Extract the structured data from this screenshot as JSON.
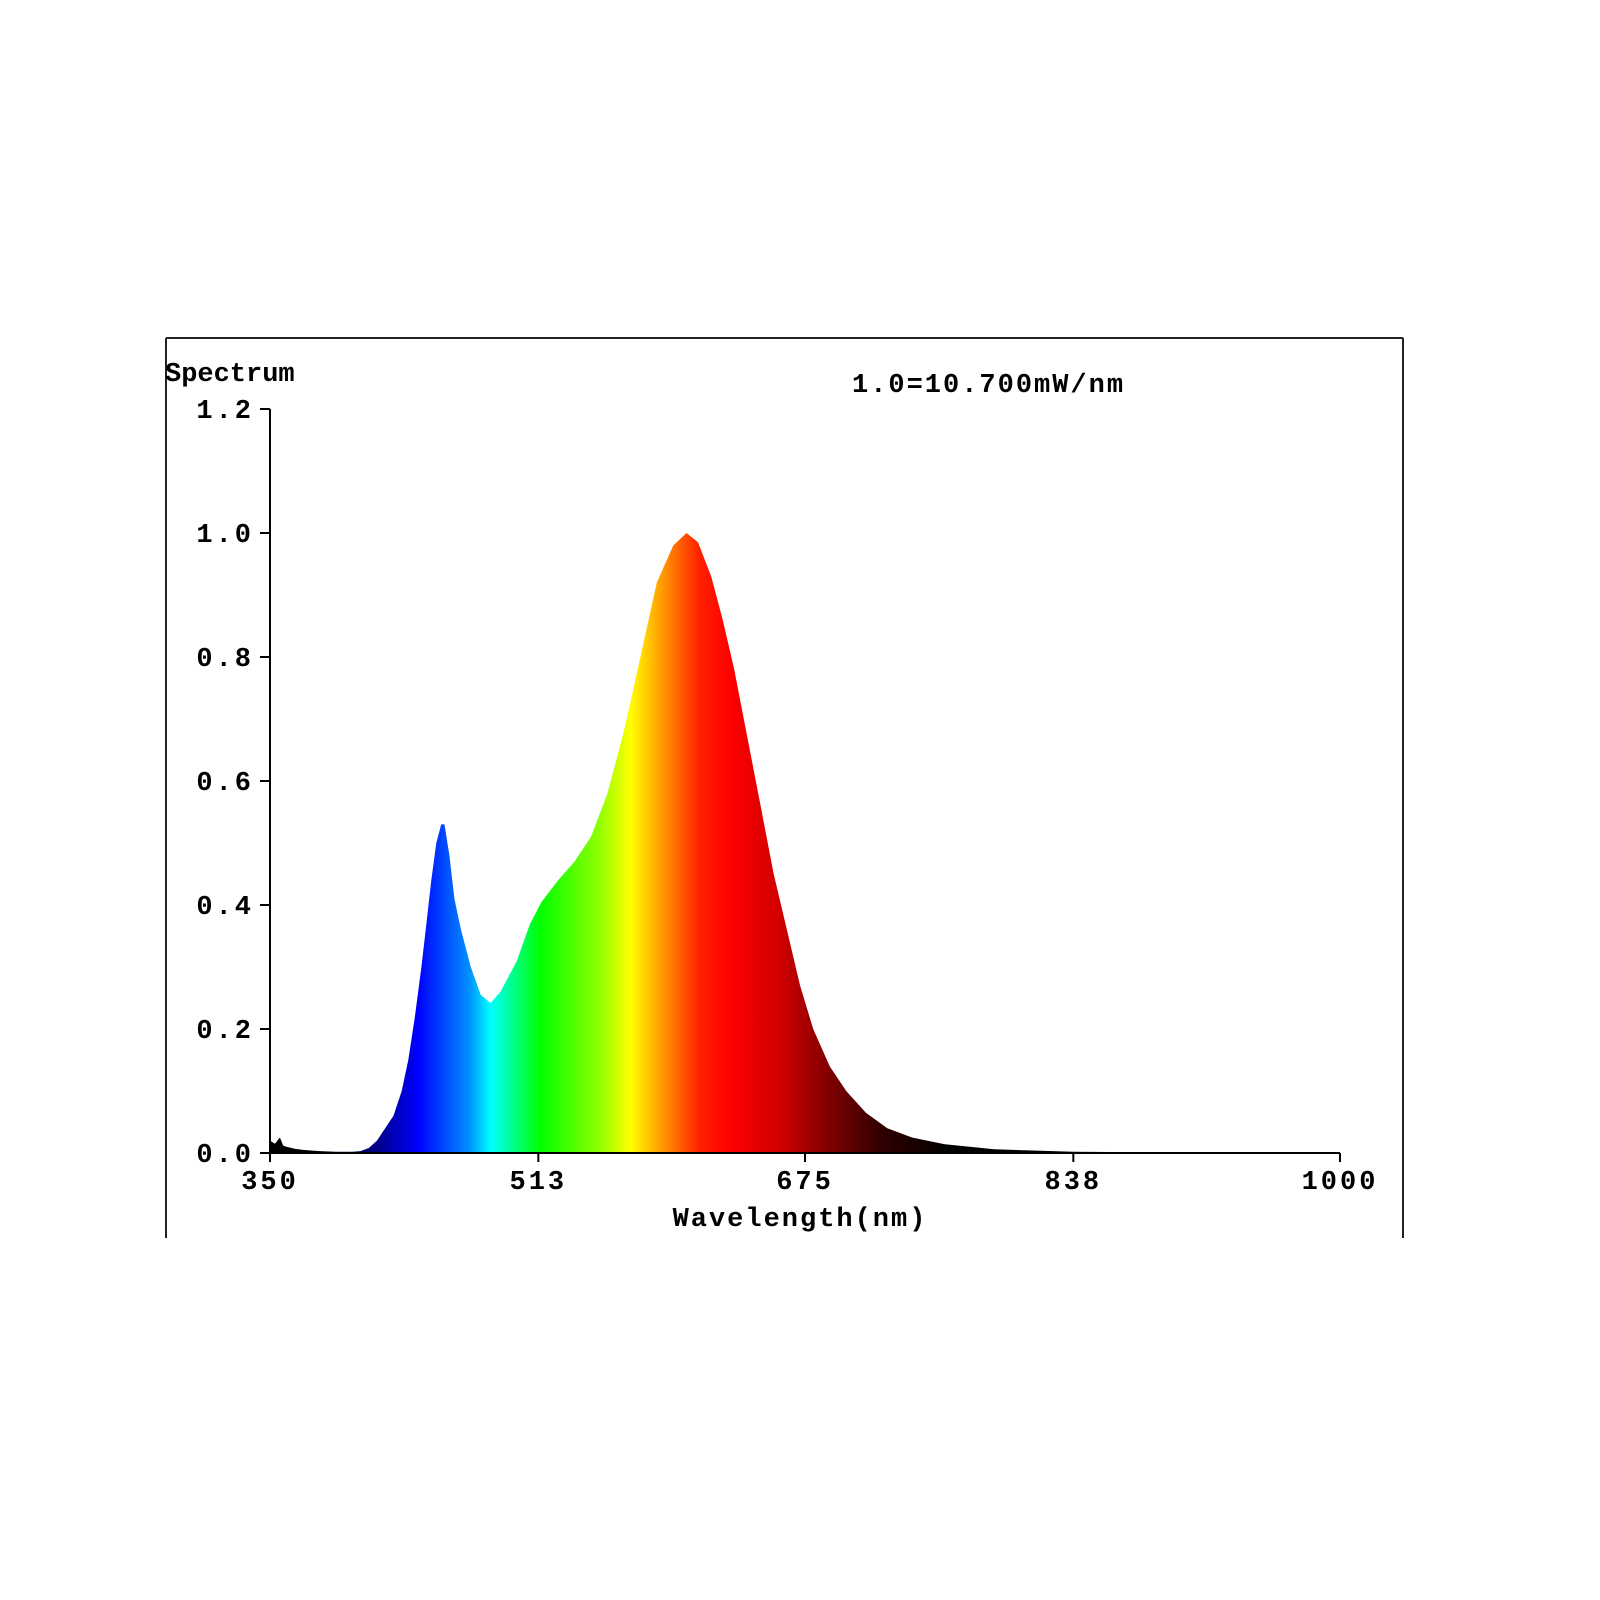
{
  "chart_data": {
    "type": "area",
    "title": "Spectrum",
    "annotation": "1.0=10.700mW/nm",
    "xlabel": "Wavelength(nm)",
    "ylabel": "",
    "xlim": [
      350,
      1000
    ],
    "ylim": [
      0,
      1.2
    ],
    "x_ticks": [
      "350",
      "513",
      "675",
      "838",
      "1000"
    ],
    "y_ticks": [
      "0.0",
      "0.2",
      "0.4",
      "0.6",
      "0.8",
      "1.0",
      "1.2"
    ],
    "grid": false,
    "fill": "wavelength-colored spectrum gradient",
    "gradient_stops": [
      {
        "nm": 380,
        "color": "#000000"
      },
      {
        "nm": 417,
        "color": "#000090"
      },
      {
        "nm": 440,
        "color": "#0000ff"
      },
      {
        "nm": 471,
        "color": "#0090ff"
      },
      {
        "nm": 484,
        "color": "#00ffff"
      },
      {
        "nm": 514,
        "color": "#00ff00"
      },
      {
        "nm": 550,
        "color": "#90ff00"
      },
      {
        "nm": 569,
        "color": "#ffff00"
      },
      {
        "nm": 587,
        "color": "#ffa000"
      },
      {
        "nm": 611,
        "color": "#ff2000"
      },
      {
        "nm": 629,
        "color": "#ff0000"
      },
      {
        "nm": 660,
        "color": "#d00000"
      },
      {
        "nm": 690,
        "color": "#800000"
      },
      {
        "nm": 721,
        "color": "#300000"
      },
      {
        "nm": 763,
        "color": "#000000"
      }
    ],
    "x": [
      350,
      353,
      356,
      358,
      360,
      365,
      370,
      380,
      390,
      400,
      405,
      410,
      415,
      420,
      425,
      430,
      434,
      438,
      442,
      445,
      448,
      451,
      454,
      456,
      459,
      462,
      466,
      472,
      478,
      484,
      490,
      500,
      508,
      515,
      525,
      535,
      545,
      555,
      565,
      575,
      585,
      595,
      603,
      610,
      618,
      625,
      632,
      640,
      648,
      656,
      664,
      672,
      680,
      690,
      700,
      712,
      725,
      740,
      760,
      790,
      838,
      900,
      1000
    ],
    "y": [
      0.02,
      0.015,
      0.025,
      0.012,
      0.01,
      0.007,
      0.005,
      0.003,
      0.002,
      0.002,
      0.003,
      0.008,
      0.02,
      0.04,
      0.06,
      0.1,
      0.15,
      0.22,
      0.3,
      0.37,
      0.44,
      0.5,
      0.53,
      0.53,
      0.48,
      0.41,
      0.36,
      0.3,
      0.255,
      0.242,
      0.26,
      0.31,
      0.37,
      0.405,
      0.44,
      0.47,
      0.51,
      0.58,
      0.68,
      0.8,
      0.92,
      0.98,
      1.0,
      0.985,
      0.93,
      0.86,
      0.78,
      0.67,
      0.56,
      0.45,
      0.36,
      0.27,
      0.2,
      0.14,
      0.1,
      0.065,
      0.04,
      0.025,
      0.014,
      0.006,
      0.002,
      0.001,
      0.0
    ]
  }
}
